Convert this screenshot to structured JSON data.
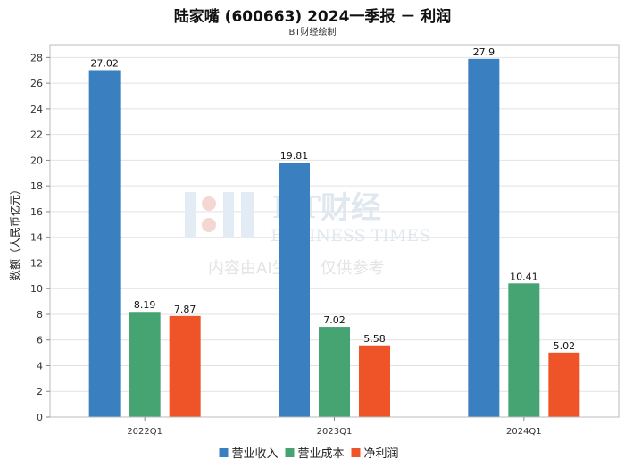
{
  "title": "陆家嘴 (600663) 2024一季报 － 利润",
  "subtitle": "BT财经绘制",
  "watermark": {
    "brand": "BT财经",
    "english": "BUSINESS TIMES",
    "note": "内容由AI生成，仅供参考"
  },
  "chart_data": {
    "type": "bar",
    "categories": [
      "2022Q1",
      "2023Q1",
      "2024Q1"
    ],
    "series": [
      {
        "name": "营业收入",
        "color": "#3a7fbf",
        "values": [
          27.02,
          19.81,
          27.9
        ]
      },
      {
        "name": "营业成本",
        "color": "#46a472",
        "values": [
          8.19,
          7.02,
          10.41
        ]
      },
      {
        "name": "净利润",
        "color": "#ef5428",
        "values": [
          7.87,
          5.58,
          5.02
        ]
      }
    ],
    "data_labels": [
      [
        "27.02",
        "19.81",
        "27.9"
      ],
      [
        "8.19",
        "7.02",
        "10.41"
      ],
      [
        "7.87",
        "5.58",
        "5.02"
      ]
    ],
    "ylabel": "数额（人民币亿元）",
    "ylim": [
      0,
      29
    ],
    "yticks": [
      0,
      2,
      4,
      6,
      8,
      10,
      12,
      14,
      16,
      18,
      20,
      22,
      24,
      26,
      28
    ],
    "grid": true,
    "legend_position": "bottom"
  }
}
